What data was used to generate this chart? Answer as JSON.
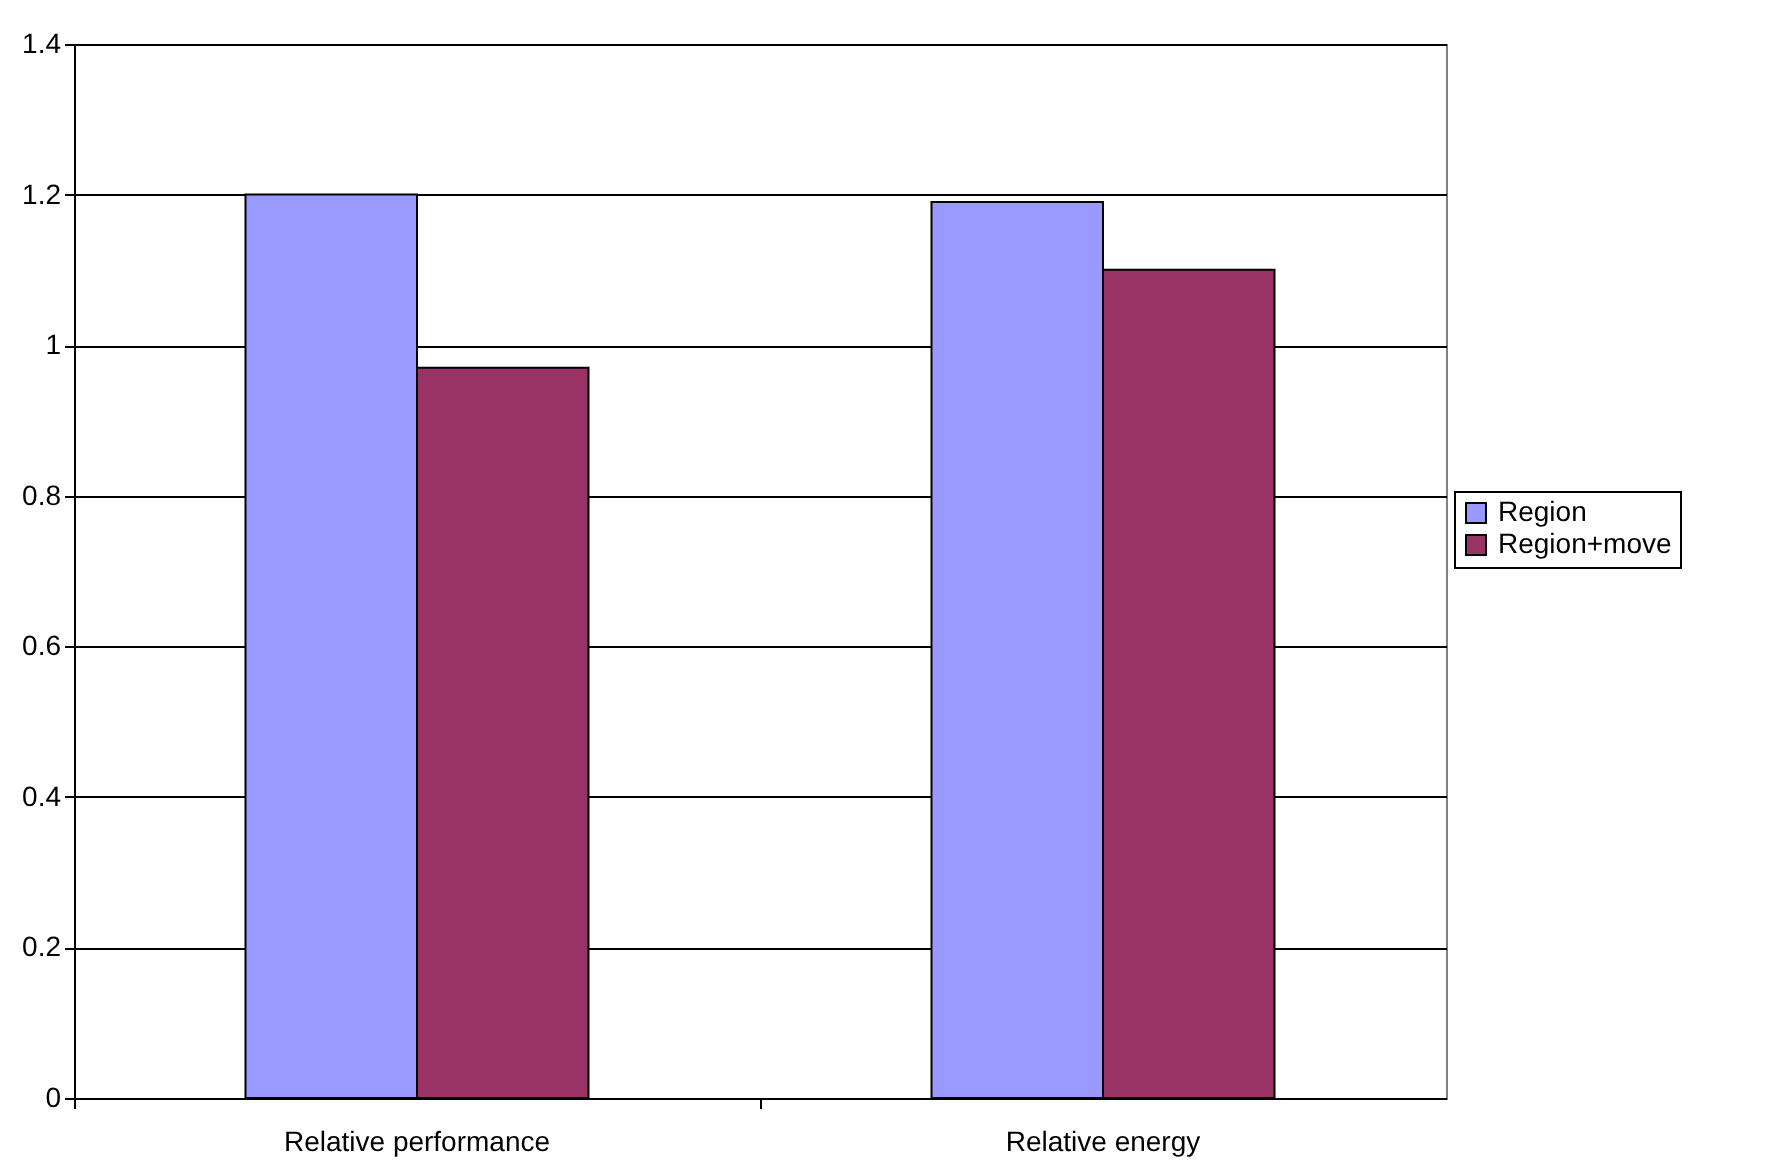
{
  "chart_data": {
    "type": "bar",
    "categories": [
      "Relative performance",
      "Relative energy"
    ],
    "series": [
      {
        "name": "Region",
        "color": "#9999ff",
        "values": [
          1.2,
          1.19
        ]
      },
      {
        "name": "Region+move",
        "color": "#993366",
        "values": [
          0.97,
          1.1
        ]
      }
    ],
    "ylim": [
      0,
      1.4
    ],
    "yticks": [
      0,
      0.2,
      0.4,
      0.6,
      0.8,
      1,
      1.2,
      1.4
    ],
    "grid": "y",
    "legend": "right"
  }
}
